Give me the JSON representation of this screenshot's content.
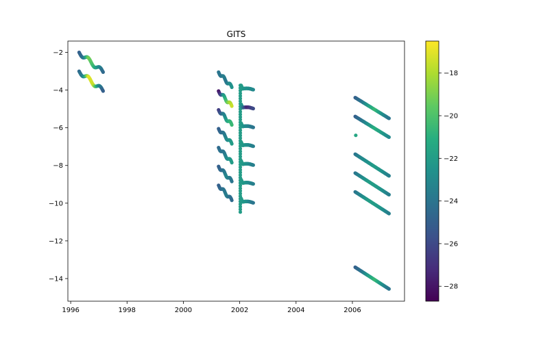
{
  "chart_data": {
    "type": "scatter",
    "title": "GITS",
    "xlabel": "",
    "ylabel": "",
    "xlim": [
      1995.9,
      2007.85
    ],
    "ylim": [
      -15.2,
      -1.4
    ],
    "xticks": [
      1996,
      1998,
      2000,
      2002,
      2004,
      2006
    ],
    "yticks": [
      -2,
      -4,
      -6,
      -8,
      -10,
      -12,
      -14
    ],
    "grid": false,
    "legend": "none",
    "marker_color_scale": "viridis",
    "colorbar": {
      "label": "",
      "range": [
        -28.7,
        -16.5
      ],
      "ticks": [
        -18,
        -20,
        -22,
        -24,
        -26,
        -28
      ]
    },
    "segments": [
      {
        "t0": 1996.3,
        "t1": 1997.15,
        "y0": -2.0,
        "y1": -3.05,
        "wave": 0.12,
        "c": [
          -25.0,
          -24.0,
          -19.0,
          -20.5,
          -22.5,
          -24.5
        ]
      },
      {
        "t0": 1996.3,
        "t1": 1997.15,
        "y0": -3.0,
        "y1": -4.05,
        "wave": 0.12,
        "c": [
          -24.5,
          -23.0,
          -17.0,
          -17.5,
          -22.5,
          -25.0
        ]
      },
      {
        "t0": 2001.25,
        "t1": 2001.72,
        "y0": -3.05,
        "y1": -3.85,
        "wave": 0.08,
        "c": [
          -24.0,
          -24.0,
          -23.5,
          -24.0,
          -23.0,
          -22.5
        ]
      },
      {
        "t0": 2001.25,
        "t1": 2001.72,
        "y0": -4.05,
        "y1": -4.85,
        "wave": 0.08,
        "c": [
          -28.0,
          -26.0,
          -22.0,
          -20.0,
          -18.5,
          -17.5
        ]
      },
      {
        "t0": 2001.25,
        "t1": 2001.72,
        "y0": -5.05,
        "y1": -5.85,
        "wave": 0.08,
        "c": [
          -26.5,
          -25.0,
          -23.5,
          -22.0,
          -21.0,
          -20.5
        ]
      },
      {
        "t0": 2001.25,
        "t1": 2001.72,
        "y0": -6.05,
        "y1": -6.85,
        "wave": 0.08,
        "c": [
          -25.0,
          -24.5,
          -24.0,
          -23.0,
          -22.5,
          -22.0
        ]
      },
      {
        "t0": 2001.25,
        "t1": 2001.72,
        "y0": -7.05,
        "y1": -7.85,
        "wave": 0.08,
        "c": [
          -24.5,
          -24.0,
          -24.0,
          -23.0,
          -22.5,
          -22.0
        ]
      },
      {
        "t0": 2001.25,
        "t1": 2001.72,
        "y0": -8.05,
        "y1": -8.85,
        "wave": 0.08,
        "c": [
          -25.0,
          -24.5,
          -24.0,
          -23.0,
          -23.5,
          -24.0
        ]
      },
      {
        "t0": 2001.25,
        "t1": 2001.72,
        "y0": -9.05,
        "y1": -9.85,
        "wave": 0.08,
        "c": [
          -25.0,
          -24.5,
          -24.0,
          -23.5,
          -24.0,
          -24.5
        ]
      },
      {
        "t0": 2006.1,
        "t1": 2007.3,
        "y0": -4.4,
        "y1": -5.5,
        "wave": 0.0,
        "c": [
          -25.0,
          -24.0,
          -22.0,
          -20.5,
          -22.5,
          -24.0
        ]
      },
      {
        "t0": 2006.1,
        "t1": 2007.3,
        "y0": -5.4,
        "y1": -6.5,
        "wave": 0.0,
        "c": [
          -25.0,
          -24.0,
          -22.5,
          -21.0,
          -22.0,
          -23.0
        ]
      },
      {
        "t0": 2006.1,
        "t1": 2007.3,
        "y0": -7.4,
        "y1": -8.55,
        "wave": 0.0,
        "c": [
          -24.0,
          -23.0,
          -22.5,
          -22.0,
          -22.5,
          -23.5
        ]
      },
      {
        "t0": 2006.1,
        "t1": 2007.3,
        "y0": -8.4,
        "y1": -9.55,
        "wave": 0.0,
        "c": [
          -24.0,
          -23.0,
          -22.0,
          -22.0,
          -22.5,
          -23.5
        ]
      },
      {
        "t0": 2006.1,
        "t1": 2007.3,
        "y0": -9.4,
        "y1": -10.55,
        "wave": 0.0,
        "c": [
          -24.0,
          -23.0,
          -22.0,
          -22.0,
          -22.5,
          -23.5
        ]
      },
      {
        "t0": 2006.1,
        "t1": 2007.3,
        "y0": -13.4,
        "y1": -14.55,
        "wave": 0.0,
        "c": [
          -25.0,
          -24.0,
          -22.0,
          -20.5,
          -22.5,
          -24.0
        ]
      }
    ],
    "stations": [
      {
        "x": 2002.02,
        "y_top": -3.75,
        "y_bottom": -10.6,
        "c": -22.0
      }
    ],
    "scallops": [
      {
        "t0": 2002.05,
        "t1": 2002.48,
        "y_start": -3.75,
        "rise": 0.15,
        "dip": 0.18,
        "c": [
          -22.0,
          -22.5,
          -23.0
        ]
      },
      {
        "t0": 2002.05,
        "t1": 2002.48,
        "y_start": -4.75,
        "rise": 0.15,
        "dip": 0.18,
        "c": [
          -22.0,
          -27.5,
          -26.0
        ]
      },
      {
        "t0": 2002.05,
        "t1": 2002.48,
        "y_start": -5.75,
        "rise": 0.15,
        "dip": 0.18,
        "c": [
          -22.0,
          -23.0,
          -24.0
        ]
      },
      {
        "t0": 2002.05,
        "t1": 2002.48,
        "y_start": -6.75,
        "rise": 0.15,
        "dip": 0.18,
        "c": [
          -22.0,
          -22.5,
          -23.5
        ]
      },
      {
        "t0": 2002.05,
        "t1": 2002.48,
        "y_start": -7.75,
        "rise": 0.15,
        "dip": 0.18,
        "c": [
          -22.0,
          -22.5,
          -23.5
        ]
      },
      {
        "t0": 2002.05,
        "t1": 2002.48,
        "y_start": -8.75,
        "rise": 0.15,
        "dip": 0.18,
        "c": [
          -22.0,
          -22.5,
          -23.5
        ]
      },
      {
        "t0": 2002.05,
        "t1": 2002.48,
        "y_start": -9.75,
        "rise": 0.15,
        "dip": 0.18,
        "c": [
          -22.0,
          -22.5,
          -24.0
        ]
      }
    ],
    "isolated_points": [
      {
        "x": 2006.12,
        "y": -6.4,
        "c": -21.5
      }
    ]
  }
}
